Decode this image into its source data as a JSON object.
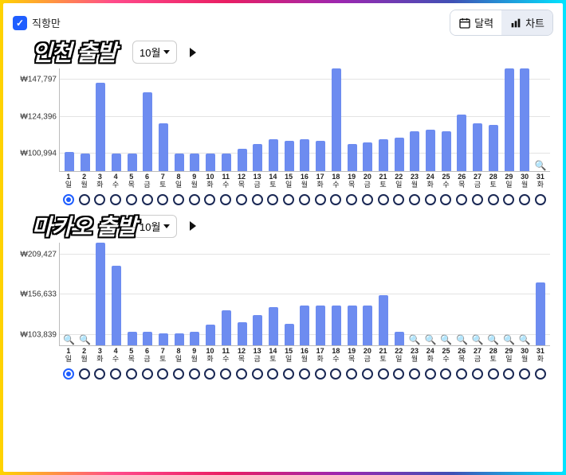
{
  "topbar": {
    "checkbox_label": "직항만",
    "checked": true,
    "seg": [
      {
        "label": "달력",
        "icon": "calendar",
        "active": false
      },
      {
        "label": "차트",
        "icon": "bars",
        "active": true
      }
    ]
  },
  "colors": {
    "bar": "#6d8cf0",
    "grid": "#e3e3e3",
    "axis": "#bbbbbb",
    "dot_border": "#1a2854",
    "dot_sel": "#1f5eff",
    "accent": "#1f5eff",
    "bg": "#ffffff"
  },
  "dow_labels": [
    "일",
    "월",
    "화",
    "수",
    "목",
    "금",
    "토"
  ],
  "charts": [
    {
      "title": "인천 출발",
      "month_label": "10월",
      "type": "bar",
      "ymin": 90000,
      "ymax": 155000,
      "ytick_values": [
        100994,
        124396,
        147797
      ],
      "ytick_labels": [
        "₩100,994",
        "₩124,396",
        "₩147,797"
      ],
      "days": 31,
      "start_dow": 0,
      "selected_day": 1,
      "values": [
        102000,
        101000,
        146000,
        101000,
        101000,
        140000,
        120000,
        101000,
        101000,
        101000,
        101000,
        104000,
        107000,
        110000,
        109000,
        110000,
        109000,
        160000,
        107000,
        108000,
        110000,
        111000,
        115000,
        116000,
        115000,
        126000,
        120000,
        119000,
        160000,
        160000,
        null
      ],
      "magnify_days": [
        31
      ]
    },
    {
      "title": "마카오 출발",
      "month_label": "10월",
      "type": "bar",
      "ymin": 90000,
      "ymax": 225000,
      "ytick_values": [
        103839,
        156633,
        209427
      ],
      "ytick_labels": [
        "₩103,839",
        "₩156,633",
        "₩209,427"
      ],
      "days": 31,
      "start_dow": 0,
      "selected_day": 1,
      "values": [
        null,
        null,
        230000,
        194000,
        108000,
        108000,
        105000,
        105000,
        108000,
        117000,
        136000,
        120000,
        130000,
        140000,
        118000,
        142000,
        142000,
        142000,
        142000,
        142000,
        156000,
        108000,
        null,
        null,
        null,
        null,
        null,
        null,
        null,
        null,
        172000
      ],
      "magnify_days": [
        1,
        2,
        22,
        23,
        24,
        25,
        26,
        27,
        28,
        29,
        30
      ]
    }
  ]
}
